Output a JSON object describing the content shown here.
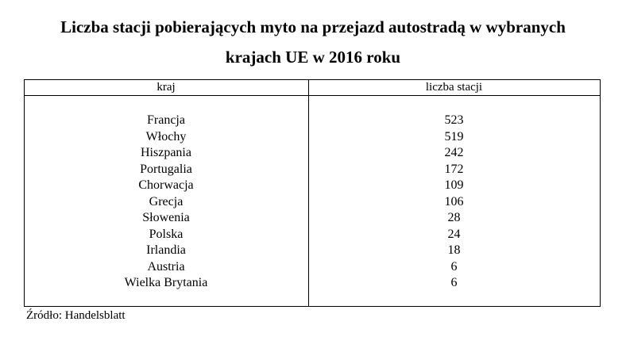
{
  "header": {
    "title_lines": [
      "Liczba stacji pobierających myto na przejazd autostradą w wybranych",
      "krajach UE w 2016 roku"
    ]
  },
  "table": {
    "columns": [
      "kraj",
      "liczba stacji"
    ],
    "rows": [
      [
        "Francja",
        523
      ],
      [
        "Włochy",
        519
      ],
      [
        "Hiszpania",
        242
      ],
      [
        "Portugalia",
        172
      ],
      [
        "Chorwacja",
        109
      ],
      [
        "Grecja",
        106
      ],
      [
        "Słowenia",
        28
      ],
      [
        "Polska",
        24
      ],
      [
        "Irlandia",
        18
      ],
      [
        "Austria",
        6
      ],
      [
        "Wielka Brytania",
        6
      ]
    ]
  },
  "source": "Źródło: Handelsblatt"
}
